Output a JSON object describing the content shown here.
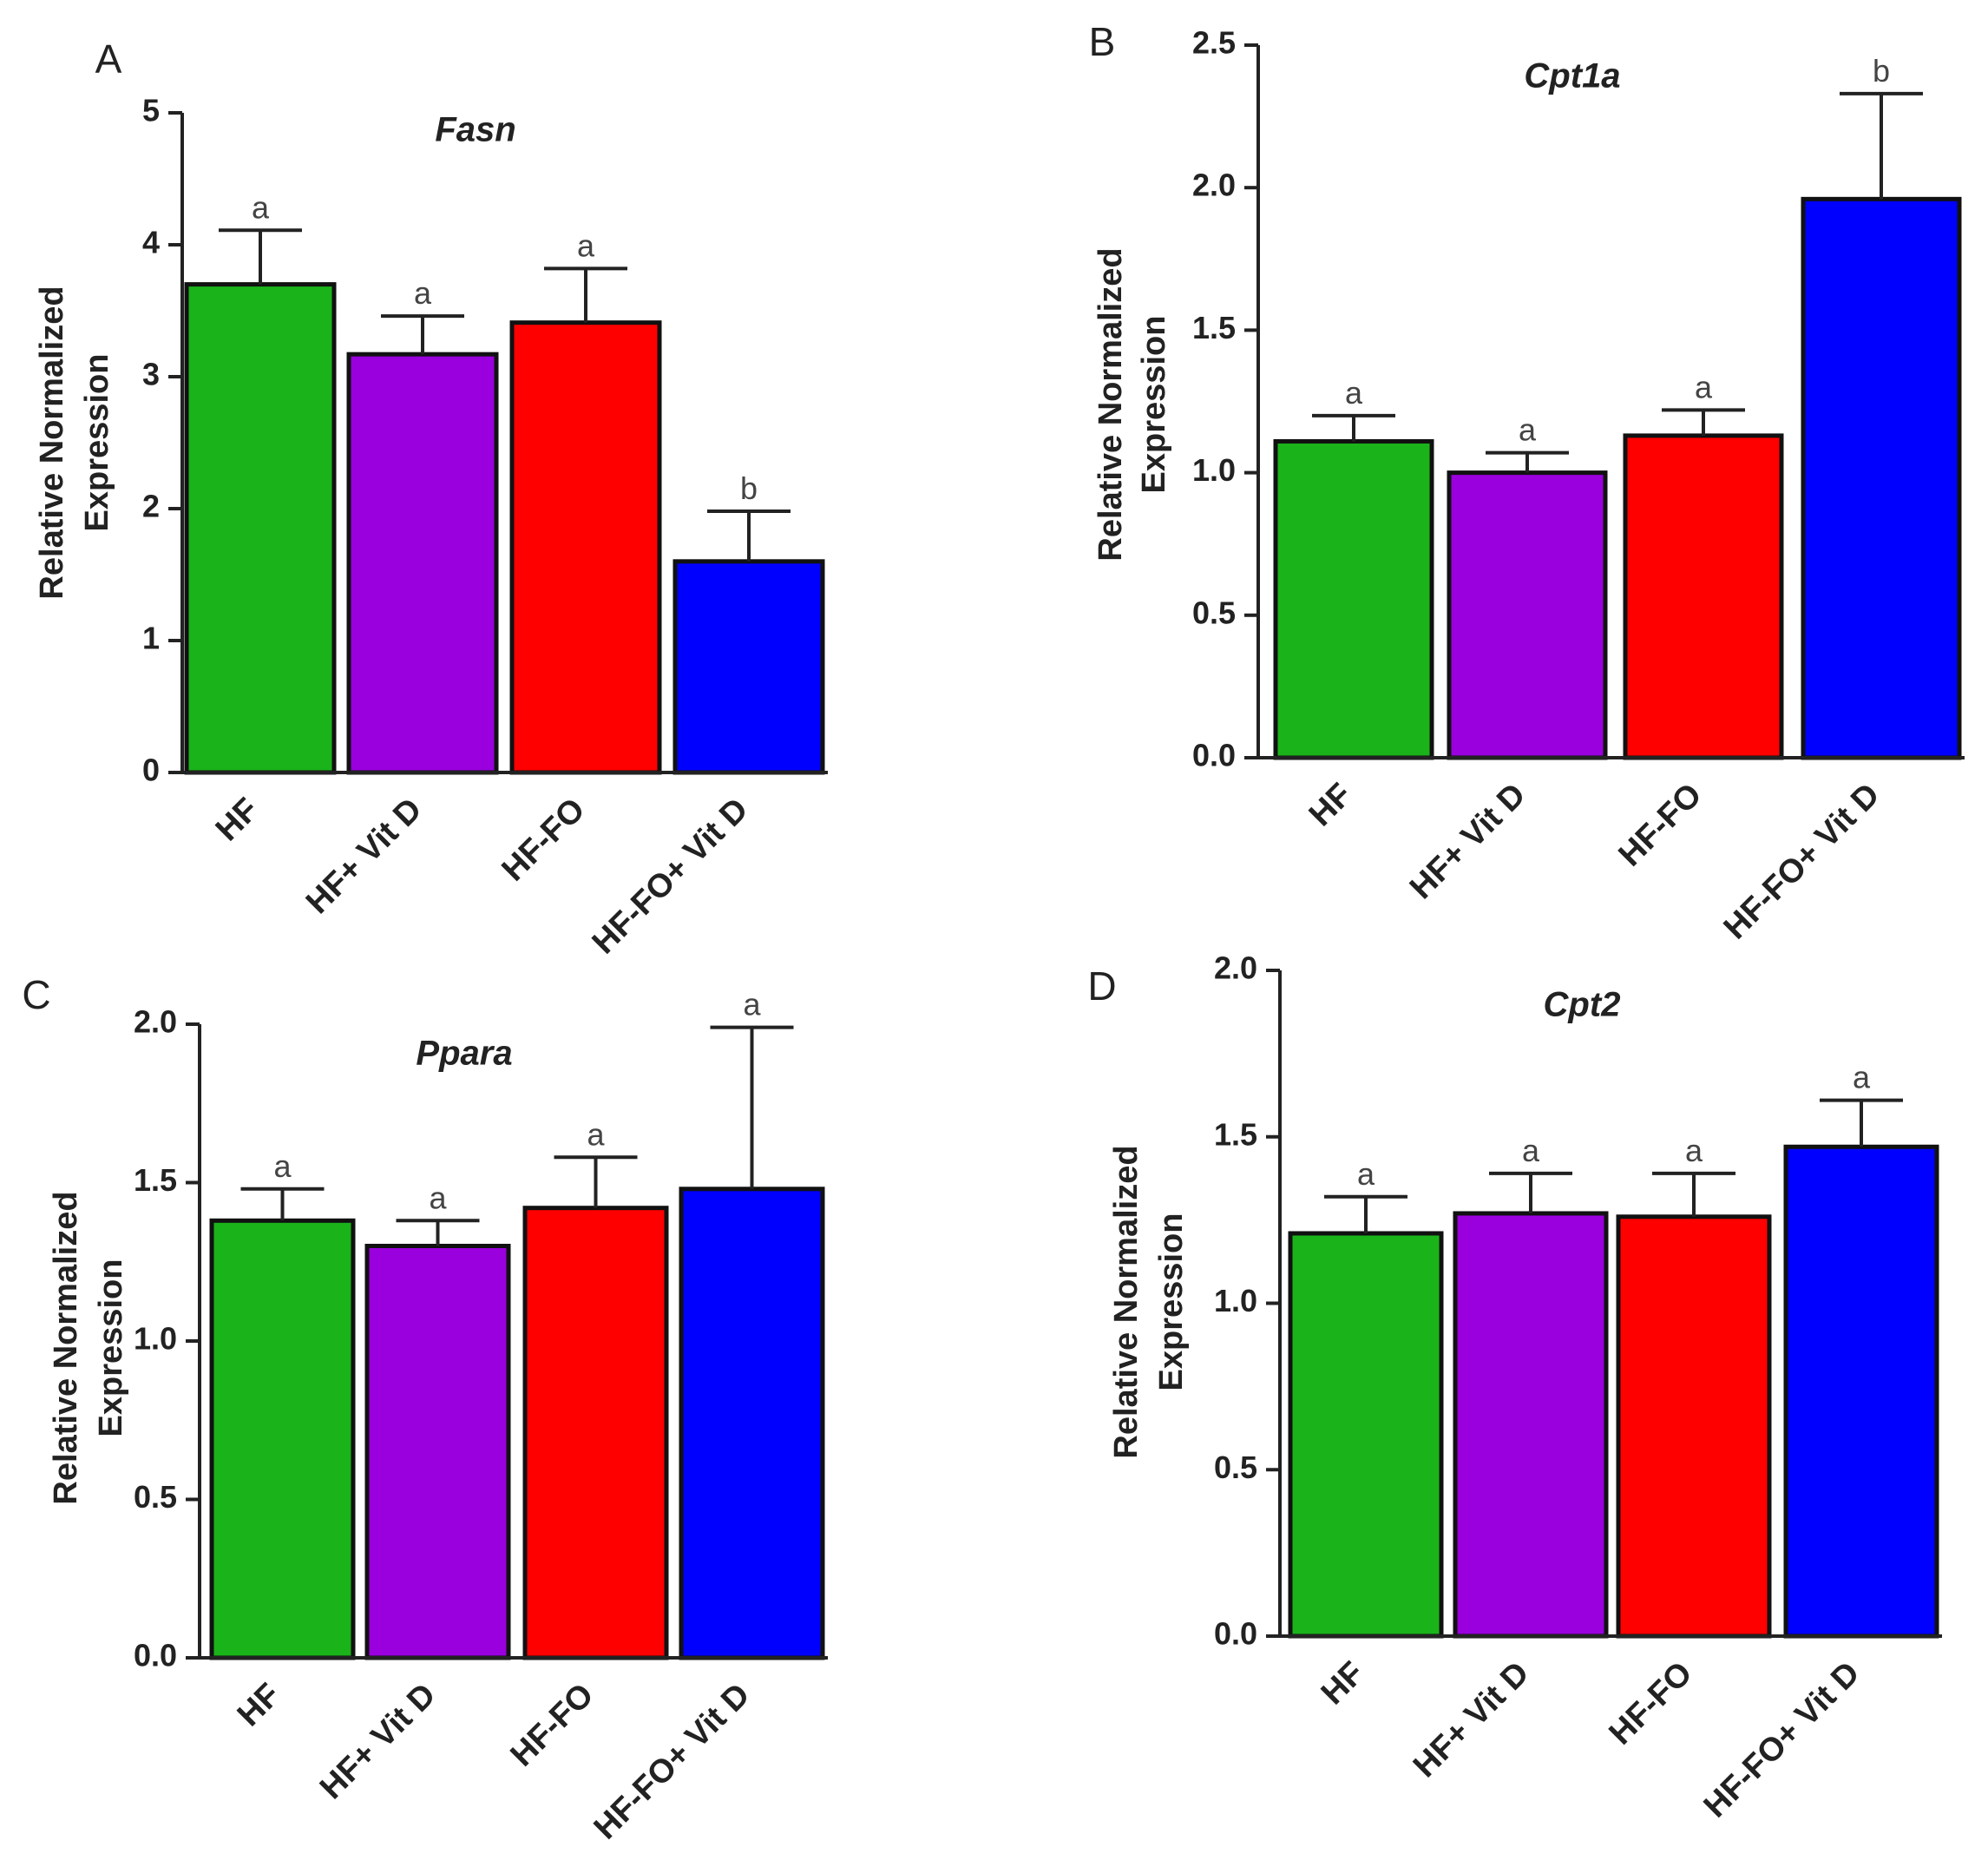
{
  "figure": {
    "series_colors": {
      "HF": "#1ab31a",
      "HF+ Vit D": "#9900dd",
      "HF-FO": "#ff0000",
      "HF-FO+ Vit D": "#0000ff"
    },
    "ylabel_lines": [
      "Relative Normalized",
      "Expression"
    ]
  },
  "chart_data": [
    {
      "type": "bar",
      "panel": "A",
      "title": "Fasn",
      "categories": [
        "HF",
        "HF+ Vit D",
        "HF-FO",
        "HF-FO+ Vit D"
      ],
      "values": [
        3.7,
        3.17,
        3.41,
        1.6
      ],
      "errors": [
        0.41,
        0.29,
        0.41,
        0.38
      ],
      "significance": [
        "a",
        "a",
        "a",
        "b"
      ],
      "ylim": [
        0,
        5
      ],
      "yticks": [
        "0",
        "1",
        "2",
        "3",
        "4",
        "5"
      ],
      "ylabel": "Relative Normalized Expression",
      "xlabel": ""
    },
    {
      "type": "bar",
      "panel": "B",
      "title": "Cpt1a",
      "categories": [
        "HF",
        "HF+ Vit D",
        "HF-FO",
        "HF-FO+ Vit D"
      ],
      "values": [
        1.11,
        1.0,
        1.13,
        1.96
      ],
      "errors": [
        0.09,
        0.07,
        0.09,
        0.37
      ],
      "significance": [
        "a",
        "a",
        "a",
        "b"
      ],
      "ylim": [
        0,
        2.5
      ],
      "yticks": [
        "0.0",
        "0.5",
        "1.0",
        "1.5",
        "2.0",
        "2.5"
      ],
      "ylabel": "Relative Normalized Expression",
      "xlabel": ""
    },
    {
      "type": "bar",
      "panel": "C",
      "title": "Ppara",
      "categories": [
        "HF",
        "HF+ Vit D",
        "HF-FO",
        "HF-FO+ Vit D"
      ],
      "values": [
        1.38,
        1.3,
        1.42,
        1.48
      ],
      "errors": [
        0.1,
        0.08,
        0.16,
        0.51
      ],
      "significance": [
        "a",
        "a",
        "a",
        "a"
      ],
      "ylim": [
        0,
        2.0
      ],
      "yticks": [
        "0.0",
        "0.5",
        "1.0",
        "1.5",
        "2.0"
      ],
      "ylabel": "Relative Normalized Expression",
      "xlabel": ""
    },
    {
      "type": "bar",
      "panel": "D",
      "title": "Cpt2",
      "categories": [
        "HF",
        "HF+ Vit D",
        "HF-FO",
        "HF-FO+ Vit D"
      ],
      "values": [
        1.21,
        1.27,
        1.26,
        1.47
      ],
      "errors": [
        0.11,
        0.12,
        0.13,
        0.14
      ],
      "significance": [
        "a",
        "a",
        "a",
        "a"
      ],
      "ylim": [
        0,
        2.0
      ],
      "yticks": [
        "0.0",
        "0.5",
        "1.0",
        "1.5",
        "2.0"
      ],
      "ylabel": "Relative Normalized Expression",
      "xlabel": ""
    }
  ]
}
